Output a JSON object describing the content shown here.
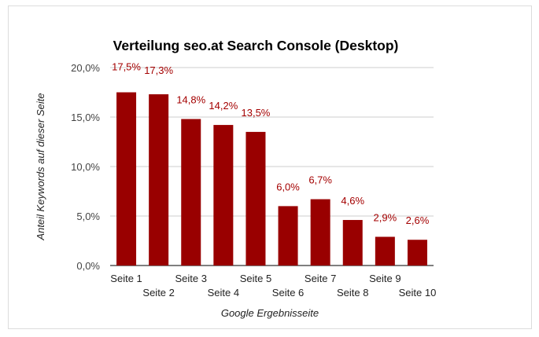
{
  "chart_data": {
    "type": "bar",
    "title": "Verteilung seo.at Search Console (Desktop)",
    "xlabel": "Google Ergebnisseite",
    "ylabel": "Anteil Keywords auf dieser Seite",
    "categories": [
      "Seite 1",
      "Seite 2",
      "Seite 3",
      "Seite 4",
      "Seite 5",
      "Seite 6",
      "Seite 7",
      "Seite 8",
      "Seite 9",
      "Seite 10"
    ],
    "values": [
      17.5,
      17.3,
      14.8,
      14.2,
      13.5,
      6.0,
      6.7,
      4.6,
      2.9,
      2.6
    ],
    "value_labels": [
      "17,5%",
      "17,3%",
      "14,8%",
      "14,2%",
      "13,5%",
      "6,0%",
      "6,7%",
      "4,6%",
      "2,9%",
      "2,6%"
    ],
    "ylim": [
      0,
      20
    ],
    "yticks": [
      0,
      5,
      10,
      15,
      20
    ],
    "ytick_labels": [
      "0,0%",
      "5,0%",
      "10,0%",
      "15,0%",
      "20,0%"
    ],
    "grid": true,
    "legend": "none",
    "colors": {
      "bar": "#990000",
      "label": "#a40000",
      "grid": "#cccccc",
      "axis": "#333333"
    }
  }
}
